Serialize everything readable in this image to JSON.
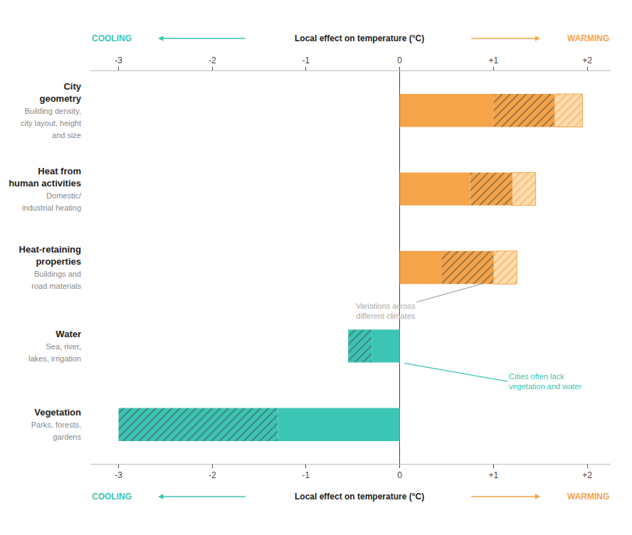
{
  "chart_data": {
    "type": "bar",
    "orientation": "horizontal",
    "xlabel": "Local effect on temperature (°C)",
    "cooling_label": {
      "text": "COOLING",
      "color": "#3CC4B4"
    },
    "warming_label": {
      "text": "WARMING",
      "color": "#F5A44A"
    },
    "categories": [
      "City\ngeometry",
      "Heat from\nhuman activities",
      "Heat-retaining\nproperties",
      "Water",
      "Vegetation"
    ],
    "category_sublabels": [
      "Building density,\ncity layout, height\nand size",
      "Domestic/\nindustrial heating",
      "Buildings and\nroad materials",
      "Sea, river,\nlakes, irrigation",
      "Parks, forests,\ngardens"
    ],
    "colors": [
      "#F5A44A",
      "#F5A44A",
      "#F5A44A",
      "#3CC4B4",
      "#3CC4B4"
    ],
    "series": [
      {
        "marker": "solid",
        "values": [
          [
            0.0,
            1.0
          ],
          [
            0.0,
            0.75
          ],
          [
            0.0,
            0.45
          ],
          [
            -0.3,
            0.0
          ],
          [
            -1.3,
            0.0
          ]
        ]
      },
      {
        "marker": "hatched",
        "values": [
          [
            1.0,
            1.65
          ],
          [
            0.75,
            1.2
          ],
          [
            0.45,
            1.0
          ],
          [
            -0.55,
            -0.3
          ],
          [
            -3.0,
            -1.3
          ]
        ]
      },
      {
        "marker": "light",
        "color": "#FFDDB0",
        "values": [
          [
            1.65,
            1.95
          ],
          [
            1.2,
            1.45
          ],
          [
            1.0,
            1.25
          ],
          null,
          null
        ]
      }
    ],
    "xlim": [
      -3.3,
      2.25
    ],
    "xticks": [
      -3,
      -2,
      -1,
      0,
      {
        "value": 1,
        "label": "+1"
      },
      {
        "value": 2,
        "label": "+2"
      }
    ],
    "grid": false,
    "annotations": [
      {
        "text": "Variations across\ndifferent climates",
        "color": "#AAAAAA"
      },
      {
        "text": "Cities often lack\nvegetation and water",
        "color": "#3CC4B4"
      }
    ]
  }
}
